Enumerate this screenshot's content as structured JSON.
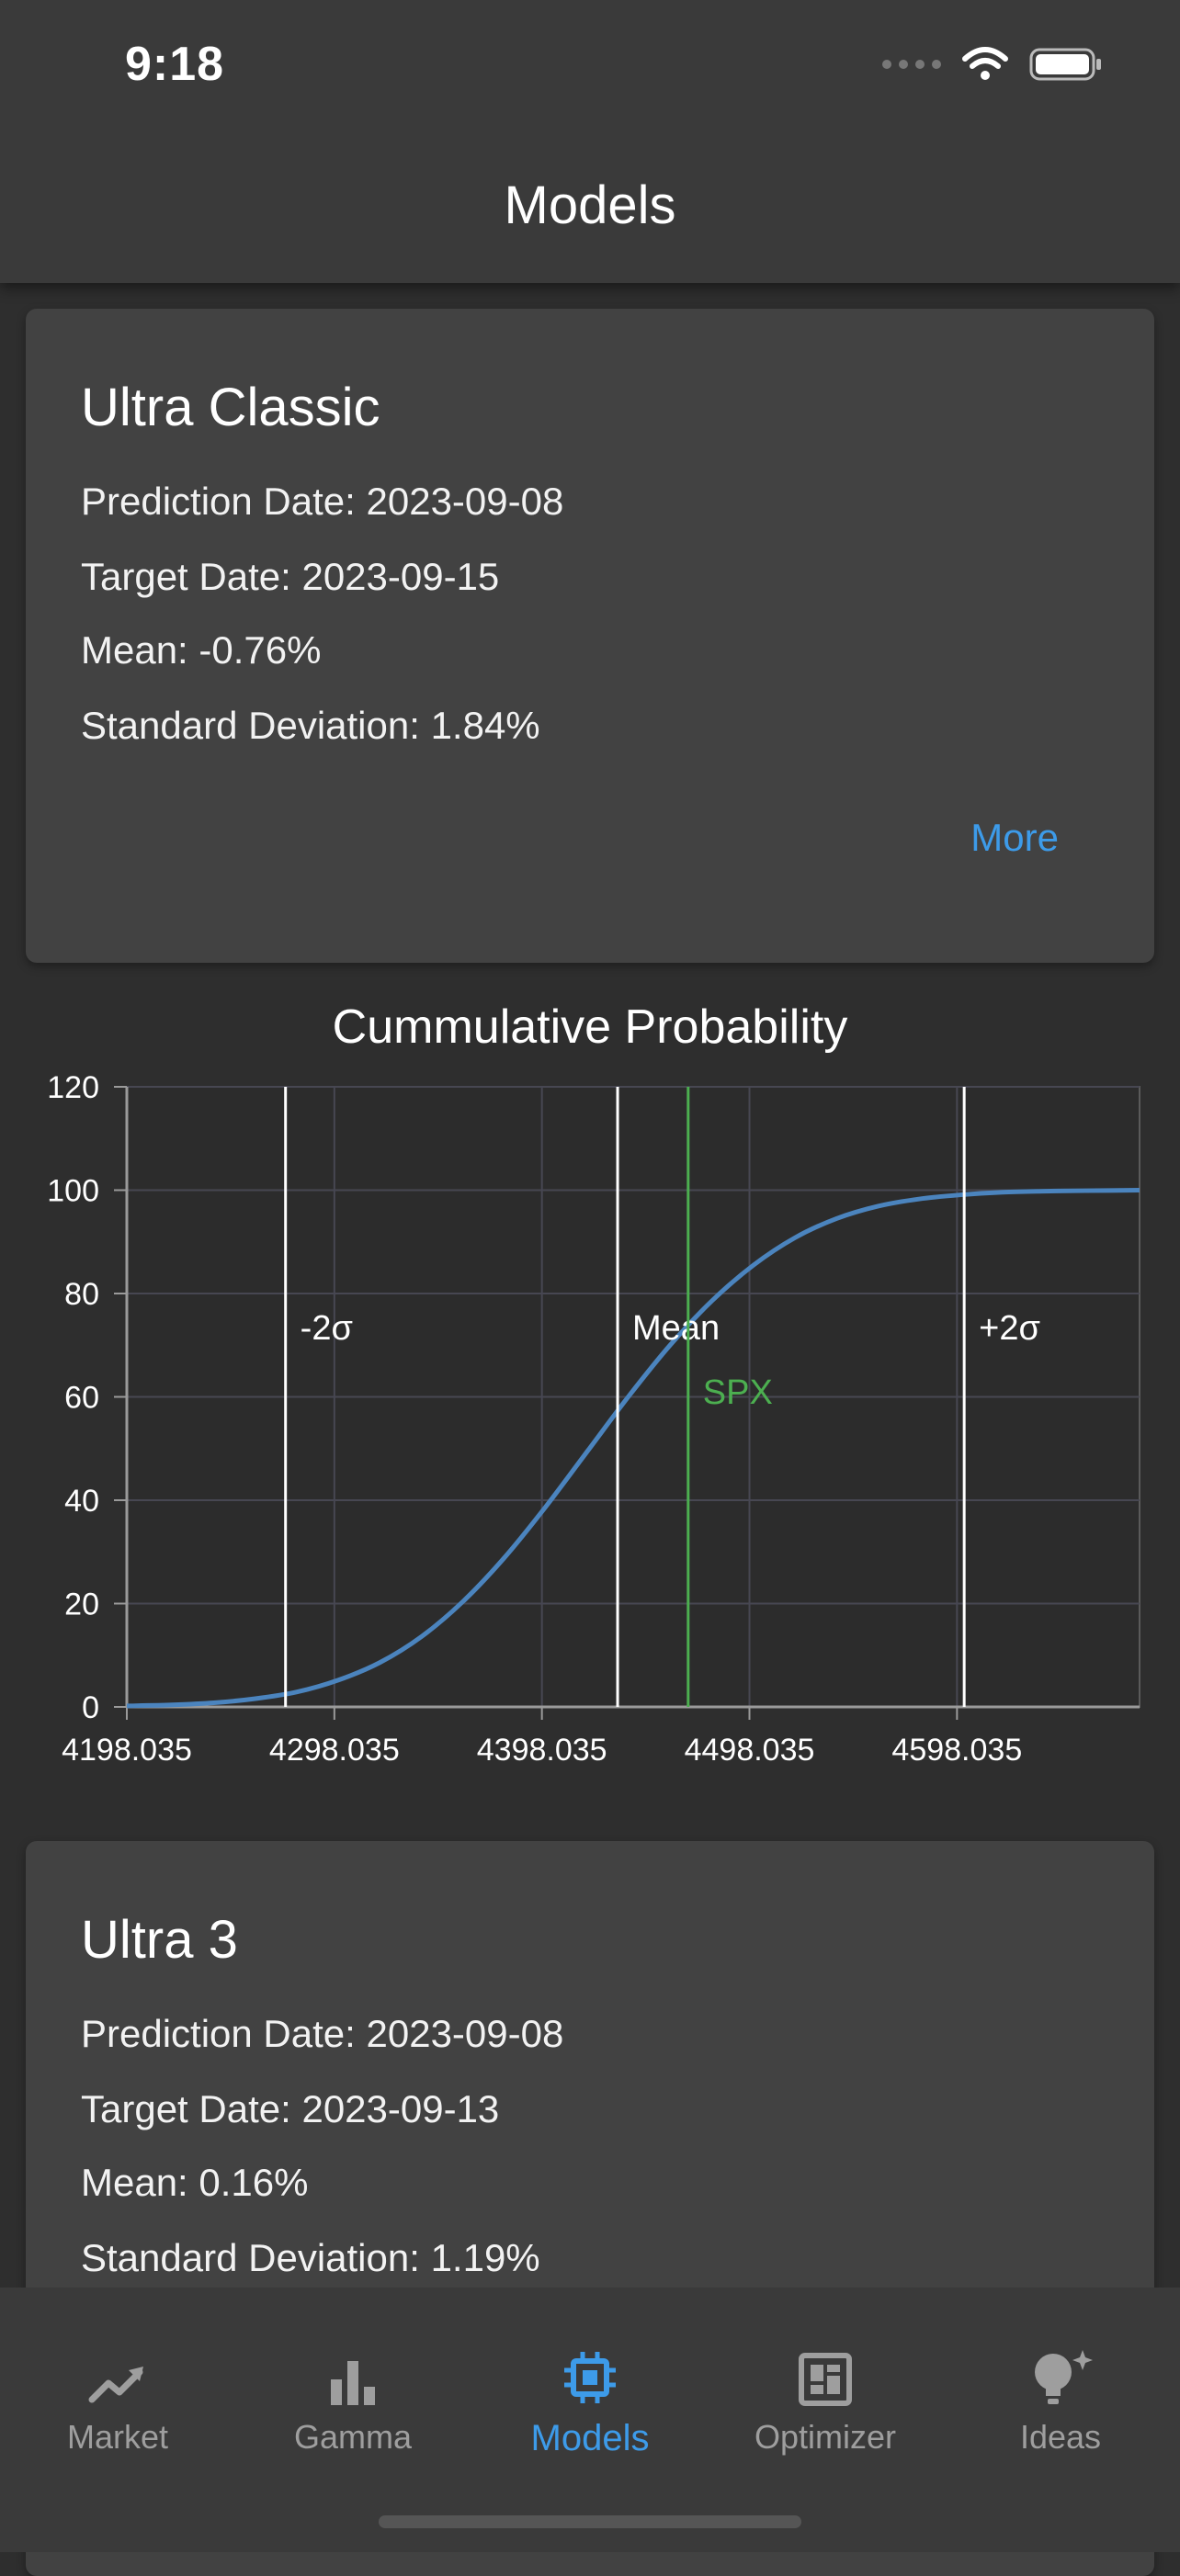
{
  "status_bar": {
    "time": "9:18"
  },
  "header": {
    "title": "Models"
  },
  "models": [
    {
      "name": "Ultra Classic",
      "prediction_date": "Prediction Date: 2023-09-08",
      "target_date": "Target Date: 2023-09-15",
      "mean": "Mean: -0.76%",
      "std_dev": "Standard Deviation: 1.84%",
      "more_label": "More"
    },
    {
      "name": "Ultra 3",
      "prediction_date": "Prediction Date: 2023-09-08",
      "target_date": "Target Date: 2023-09-13",
      "mean": "Mean: 0.16%",
      "std_dev": "Standard Deviation: 1.19%"
    }
  ],
  "chart_data": {
    "type": "line",
    "title": "Cummulative Probability",
    "xlim": [
      4198.035,
      4686
    ],
    "ylim": [
      0,
      120
    ],
    "x_ticks": [
      4198.035,
      4298.035,
      4398.035,
      4498.035,
      4598.035
    ],
    "x_tick_labels": [
      "4198.035",
      "4298.035",
      "4398.035",
      "4498.035",
      "4598.035"
    ],
    "y_ticks": [
      0,
      20,
      40,
      60,
      80,
      100,
      120
    ],
    "series": [
      {
        "x": [
          4198.035,
          4220,
          4240,
          4260,
          4280,
          4300,
          4320,
          4340,
          4360,
          4380,
          4400,
          4420,
          4440,
          4460,
          4480,
          4500,
          4520,
          4540,
          4560,
          4580,
          4600,
          4620,
          4640,
          4660,
          4686
        ],
        "y": [
          0.2,
          0.4,
          0.8,
          1.6,
          2.9,
          5.2,
          8.6,
          13.6,
          20.4,
          28.9,
          38.8,
          49.5,
          60.2,
          70.1,
          78.6,
          85.5,
          90.8,
          94.5,
          96.9,
          98.3,
          99.1,
          99.6,
          99.8,
          99.9,
          100
        ]
      }
    ],
    "markers": [
      {
        "label": "-2σ",
        "x": 4274.5
      },
      {
        "label": "Mean",
        "x": 4434.5
      },
      {
        "label": "SPX",
        "x": 4468.5
      },
      {
        "label": "+2σ",
        "x": 4601.5
      }
    ],
    "grid": true,
    "colors": {
      "line": "#4b84be",
      "marker": "#ffffff",
      "spx": "#4caf50",
      "grid": "#474752"
    }
  },
  "tabs": [
    {
      "label": "Market",
      "icon": "trending-up-icon",
      "active": false
    },
    {
      "label": "Gamma",
      "icon": "bar-chart-icon",
      "active": false
    },
    {
      "label": "Models",
      "icon": "cpu-chip-icon",
      "active": true
    },
    {
      "label": "Optimizer",
      "icon": "dashboard-icon",
      "active": false
    },
    {
      "label": "Ideas",
      "icon": "lightbulb-icon",
      "active": false
    }
  ],
  "colors": {
    "accent": "#3d9be9",
    "card": "#424242",
    "background": "#2e2e2e",
    "inactive_tab": "#9e9e9e"
  }
}
